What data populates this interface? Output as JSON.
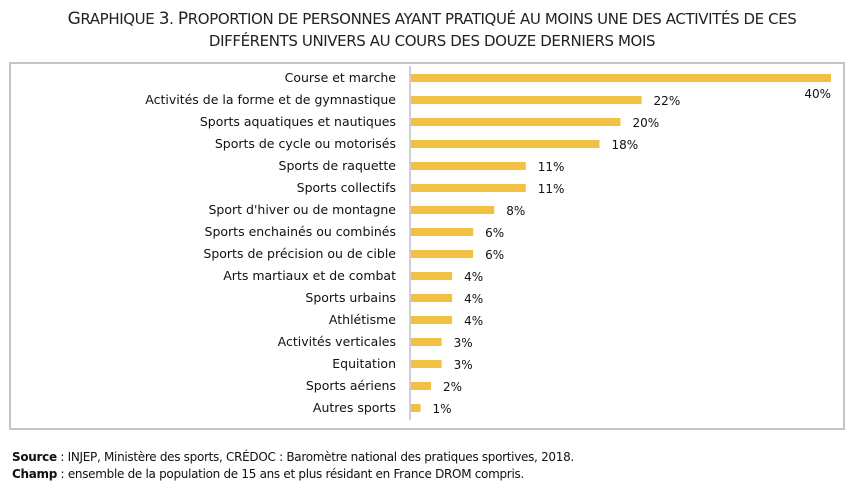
{
  "chart_data": {
    "type": "bar",
    "orientation": "horizontal",
    "title_line1": "Graphique 3. Proportion de personnes ayant pratiqué au moins une des activités de ces",
    "title_line2": "différents univers au cours des douze derniers mois",
    "categories": [
      "Course et marche",
      "Activités de la forme et de gymnastique",
      "Sports aquatiques et nautiques",
      "Sports de cycle ou motorisés",
      "Sports de raquette",
      "Sports collectifs",
      "Sport d'hiver ou de montagne",
      "Sports enchainés ou combinés",
      "Sports de précision ou de cible",
      "Arts martiaux et de combat",
      "Sports urbains",
      "Athlétisme",
      "Activités verticales",
      "Equitation",
      "Sports aériens",
      "Autres sports"
    ],
    "values": [
      40,
      22,
      20,
      18,
      11,
      11,
      8,
      6,
      6,
      4,
      4,
      4,
      3,
      3,
      2,
      1
    ],
    "value_labels": [
      "40%",
      "22%",
      "20%",
      "18%",
      "11%",
      "11%",
      "8%",
      "6%",
      "6%",
      "4%",
      "4%",
      "4%",
      "3%",
      "3%",
      "2%",
      "1%"
    ],
    "unit": "%",
    "xlim": [
      0,
      40
    ],
    "xlabel": "",
    "ylabel": "",
    "grid": false,
    "legend": "none",
    "bar_color": "#F2C043"
  },
  "footer": {
    "source_label": "Source",
    "source_text": " : INJEP, Ministère des sports, CRÉDOC : Baromètre national des pratiques sportives, 2018.",
    "champ_label": "Champ",
    "champ_text": " : ensemble de la population de 15 ans et plus résidant en France DROM compris."
  }
}
